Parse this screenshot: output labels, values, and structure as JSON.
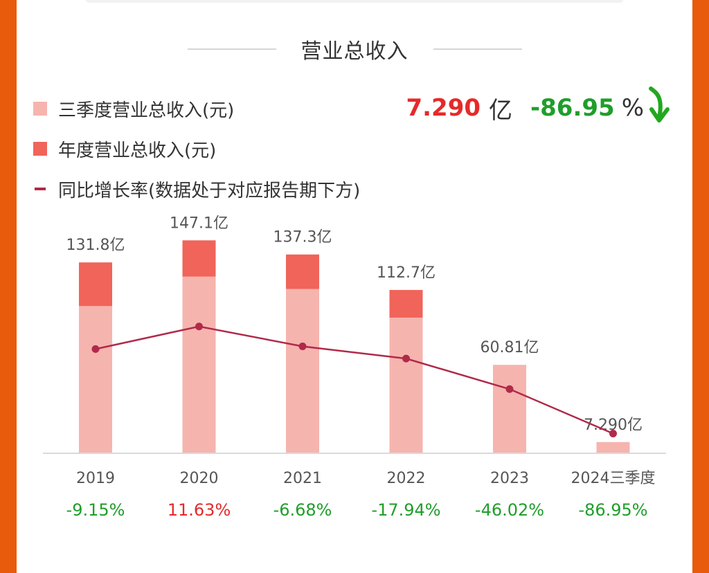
{
  "title": "营业总收入",
  "legend": {
    "q3_label": "三季度营业总收入(元)",
    "annual_label": "年度营业总收入(元)",
    "yoy_label": "同比增长率(数据处于对应报告期下方)"
  },
  "summary": {
    "value": "7.290",
    "unit": "亿",
    "pct": "-86.95",
    "pct_sign": "%",
    "trend": "down-arrow-icon"
  },
  "colors": {
    "q3": "#f6b4ae",
    "annual": "#f0645a",
    "yoy_line": "#b02a4a",
    "positive": "#e52a2a",
    "negative": "#1f9e2a"
  },
  "chart_data": {
    "type": "bar",
    "categories": [
      "2019",
      "2020",
      "2021",
      "2022",
      "2023",
      "2024三季度"
    ],
    "series": [
      {
        "name": "三季度营业总收入(元)",
        "values": [
          101.5,
          121.9,
          113.3,
          93.5,
          60.81,
          7.29
        ]
      },
      {
        "name": "年度营业总收入(元)",
        "values": [
          131.8,
          147.1,
          137.3,
          112.7,
          60.81,
          7.29
        ]
      },
      {
        "name": "同比增长率(数据处于对应报告期下方)",
        "values": [
          -9.15,
          11.63,
          -6.68,
          -17.94,
          -46.02,
          -86.95
        ]
      }
    ],
    "bar_labels": [
      "131.8亿",
      "147.1亿",
      "137.3亿",
      "112.7亿",
      "60.81亿",
      "7.290亿"
    ],
    "pct_labels": [
      "-9.15%",
      "11.63%",
      "-6.68%",
      "-17.94%",
      "-46.02%",
      "-86.95%"
    ],
    "legend_position": "top-left"
  }
}
